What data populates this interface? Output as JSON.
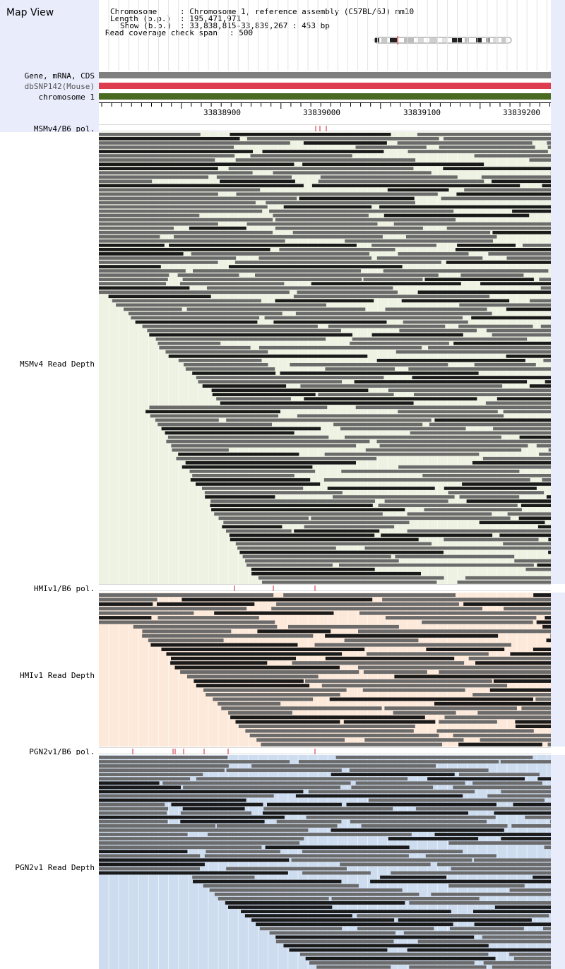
{
  "app": {
    "title": "Map View"
  },
  "info": {
    "chromosome_key": "Chromosome",
    "chromosome_value": ": Chromosome 1, reference assembly (C57BL/6J) mm10",
    "length_key": "Length (b.p.)",
    "length_value": ": 195,471,971",
    "show_key": "Show (b.p.)",
    "show_value": ": 33,838,815-33,839,267 : 453 bp",
    "coverage_key": "Read coverage check span",
    "coverage_value": ": 500"
  },
  "tracks": {
    "gene_label": "Gene, mRNA, CDS",
    "snp_label": "dbSNP142(Mouse)",
    "chrom_label": "chromosome 1"
  },
  "ruler": {
    "ticks": [
      "33838900",
      "33839000",
      "33839100",
      "33839200"
    ]
  },
  "samples": [
    {
      "id": "msmv4",
      "pol_label": "MSMv4/B6 pol.",
      "depth_label": "MSMv4 Read Depth",
      "snp_count": 3,
      "read_rows": 106
    },
    {
      "id": "hmiv1",
      "pol_label": "HMIv1/B6 pol.",
      "depth_label": "HMIv1 Read Depth",
      "snp_count": 3,
      "read_rows": 34
    },
    {
      "id": "pgn2v1",
      "pol_label": "PGN2v1/B6 pol.",
      "depth_label": "PGN2v1 Read Depth",
      "snp_count": 6,
      "read_rows": 50
    }
  ],
  "colors": {
    "left_panel": "#e9ecfb",
    "gene_track": "#7f7f7f",
    "snp_track": "#dd3d4e",
    "chromosome_track": "#4a6a22",
    "msmv4_bg": "#eef2e2",
    "hmiv1_bg": "#fde9da",
    "pgn2v1_bg": "#cddcef",
    "snp_tick": "#cc2233",
    "read_dark": "#1a1a1a",
    "read_gray": "#6b6b6b"
  }
}
